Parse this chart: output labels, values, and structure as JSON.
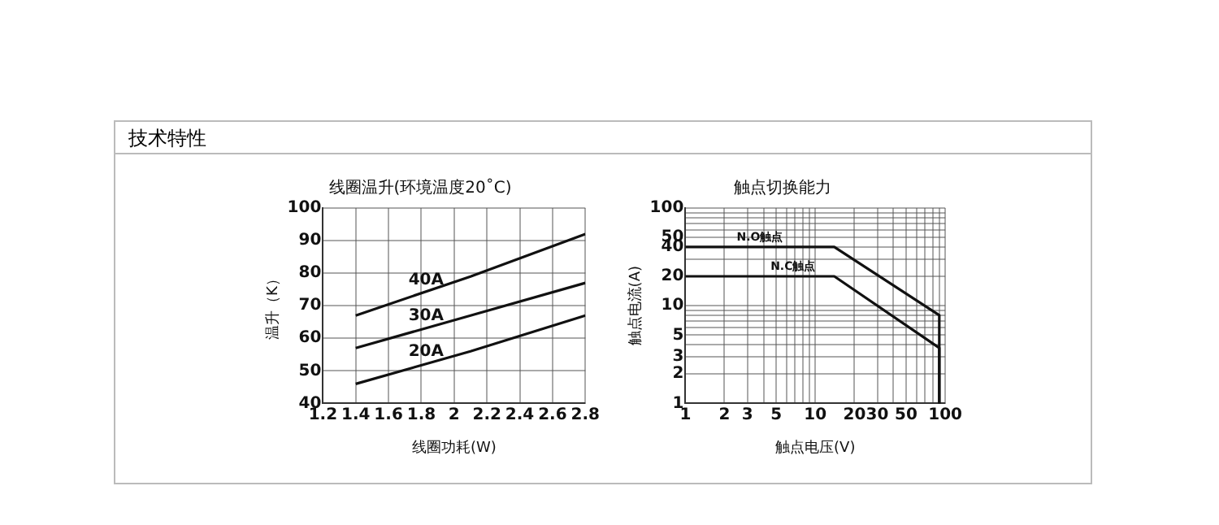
{
  "chart_data": [
    {
      "type": "line",
      "title": "线圈温升(环境温度20˚C)",
      "xlabel": "线圈功耗(W)",
      "ylabel": "温升（K）",
      "annotations": [
        "技术特性"
      ],
      "series": [
        {
          "name": "40A",
          "color": "#111111",
          "x": [
            1.4,
            2.1,
            2.8
          ],
          "values": [
            67,
            79,
            92
          ]
        },
        {
          "name": "30A",
          "color": "#111111",
          "x": [
            1.4,
            2.1,
            2.8
          ],
          "values": [
            57,
            67,
            77
          ]
        },
        {
          "name": "20A",
          "color": "#111111",
          "x": [
            1.4,
            2.1,
            2.8
          ],
          "values": [
            46,
            56,
            67
          ]
        }
      ],
      "xlim": [
        1.2,
        2.8
      ],
      "xticks": [
        1.2,
        1.4,
        1.6,
        1.8,
        2,
        2.2,
        2.4,
        2.6,
        2.8
      ],
      "ylim": [
        40,
        100
      ],
      "yticks": [
        40,
        50,
        60,
        70,
        80,
        90,
        100
      ],
      "grid": true,
      "legend": false,
      "marker": "none",
      "line_style": "solid"
    },
    {
      "type": "line",
      "title": "触点切换能力",
      "xlabel": "触点电压(V)",
      "ylabel": "触点电流(A)",
      "log": "xy",
      "series": [
        {
          "name": "N.O触点",
          "color": "#111111",
          "x": [
            1,
            14,
            90,
            90
          ],
          "values": [
            40,
            40,
            8,
            1
          ]
        },
        {
          "name": "N.C触点",
          "color": "#111111",
          "x": [
            1,
            14,
            90,
            90
          ],
          "values": [
            20,
            20,
            3.7,
            1
          ]
        }
      ],
      "xlim": [
        1,
        100
      ],
      "xticks": [
        1,
        2,
        3,
        {
          "value": 4,
          "label": null
        },
        5,
        {
          "value": 6,
          "label": null
        },
        {
          "value": 7,
          "label": null
        },
        {
          "value": 8,
          "label": null
        },
        {
          "value": 9,
          "label": null
        },
        10,
        20,
        30,
        {
          "value": 40,
          "label": null
        },
        50,
        {
          "value": 60,
          "label": null
        },
        {
          "value": 70,
          "label": null
        },
        {
          "value": 80,
          "label": null
        },
        {
          "value": 90,
          "label": null
        },
        100
      ],
      "ylim": [
        1,
        100
      ],
      "yticks": [
        1,
        2,
        3,
        {
          "value": 4,
          "label": null
        },
        5,
        {
          "value": 6,
          "label": null
        },
        {
          "value": 7,
          "label": null
        },
        {
          "value": 8,
          "label": null
        },
        {
          "value": 9,
          "label": null
        },
        10,
        20,
        {
          "value": 30,
          "label": null
        },
        40,
        50,
        {
          "value": 60,
          "label": null
        },
        {
          "value": 70,
          "label": null
        },
        {
          "value": 80,
          "label": null
        },
        {
          "value": 90,
          "label": null
        },
        100
      ],
      "grid": true,
      "legend": false,
      "marker": "none",
      "line_style": "solid"
    }
  ]
}
